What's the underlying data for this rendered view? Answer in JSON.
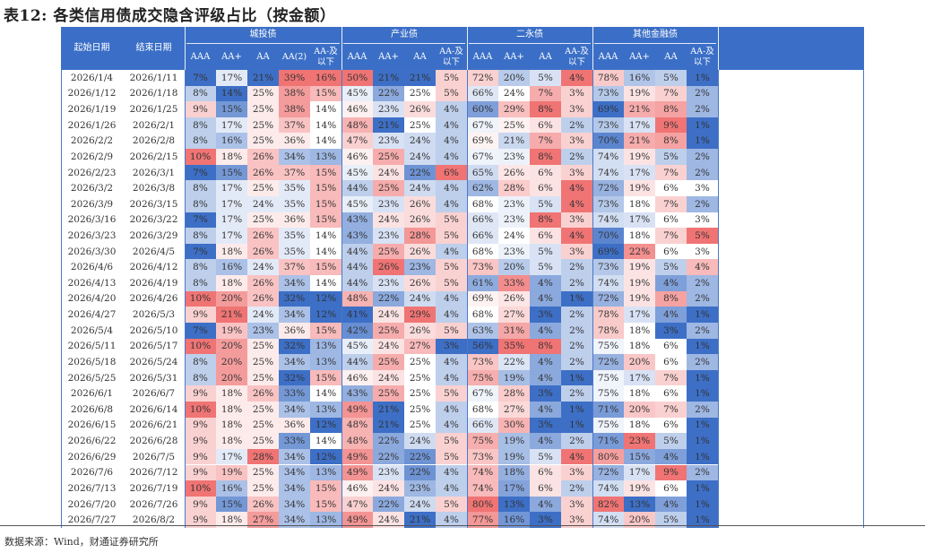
{
  "title": "表12: 各类信用债成交隐含评级占比（按金额）",
  "source": "数据来源：Wind，财通证券研究所",
  "header": {
    "start_date": "起始日期",
    "end_date": "结束日期",
    "groups": [
      {
        "name": "城投债",
        "cols": [
          "AAA",
          "AA+",
          "AA",
          "AA(2)",
          "AA-及以下"
        ]
      },
      {
        "name": "产业债",
        "cols": [
          "AAA",
          "AA+",
          "AA",
          "AA-及以下"
        ]
      },
      {
        "name": "二永债",
        "cols": [
          "AAA",
          "AA+",
          "AA",
          "AA-及以下"
        ]
      },
      {
        "name": "其他金融债",
        "cols": [
          "AAA",
          "AA+",
          "AA",
          "AA-及以下"
        ]
      }
    ]
  },
  "colors": {
    "header_bg": "#3b6fc7",
    "low_blue": "#3d6fc6",
    "white": "#ffffff",
    "high_red": "#f07474"
  },
  "rows": [
    [
      "2026/1/4",
      "2026/1/11",
      [
        "7%",
        "17%",
        "21%",
        "39%",
        "16%"
      ],
      [
        "50%",
        "21%",
        "21%",
        "5%"
      ],
      [
        "72%",
        "20%",
        "5%",
        "4%"
      ],
      [
        "78%",
        "16%",
        "5%",
        "1%"
      ]
    ],
    [
      "2026/1/12",
      "2026/1/18",
      [
        "8%",
        "14%",
        "25%",
        "38%",
        "15%"
      ],
      [
        "45%",
        "22%",
        "25%",
        "5%"
      ],
      [
        "66%",
        "24%",
        "7%",
        "3%"
      ],
      [
        "73%",
        "19%",
        "7%",
        "2%"
      ]
    ],
    [
      "2026/1/19",
      "2026/1/25",
      [
        "9%",
        "15%",
        "25%",
        "38%",
        "14%"
      ],
      [
        "46%",
        "23%",
        "26%",
        "4%"
      ],
      [
        "60%",
        "29%",
        "8%",
        "3%"
      ],
      [
        "69%",
        "21%",
        "8%",
        "2%"
      ]
    ],
    [
      "2026/1/26",
      "2026/2/1",
      [
        "8%",
        "17%",
        "25%",
        "37%",
        "14%"
      ],
      [
        "48%",
        "21%",
        "25%",
        "4%"
      ],
      [
        "67%",
        "25%",
        "6%",
        "2%"
      ],
      [
        "73%",
        "17%",
        "9%",
        "1%"
      ]
    ],
    [
      "2026/2/2",
      "2026/2/8",
      [
        "8%",
        "16%",
        "25%",
        "36%",
        "14%"
      ],
      [
        "47%",
        "23%",
        "24%",
        "4%"
      ],
      [
        "69%",
        "21%",
        "7%",
        "3%"
      ],
      [
        "70%",
        "21%",
        "8%",
        "1%"
      ]
    ],
    [
      "2026/2/9",
      "2026/2/15",
      [
        "10%",
        "18%",
        "26%",
        "34%",
        "13%"
      ],
      [
        "46%",
        "25%",
        "24%",
        "4%"
      ],
      [
        "67%",
        "23%",
        "8%",
        "2%"
      ],
      [
        "74%",
        "19%",
        "5%",
        "2%"
      ]
    ],
    [
      "2026/2/23",
      "2026/3/1",
      [
        "7%",
        "15%",
        "26%",
        "37%",
        "15%"
      ],
      [
        "45%",
        "24%",
        "22%",
        "6%"
      ],
      [
        "65%",
        "26%",
        "6%",
        "3%"
      ],
      [
        "74%",
        "17%",
        "7%",
        "2%"
      ]
    ],
    [
      "2026/3/2",
      "2026/3/8",
      [
        "8%",
        "17%",
        "25%",
        "35%",
        "15%"
      ],
      [
        "44%",
        "25%",
        "24%",
        "4%"
      ],
      [
        "62%",
        "28%",
        "6%",
        "4%"
      ],
      [
        "72%",
        "19%",
        "6%",
        "3%"
      ]
    ],
    [
      "2026/3/9",
      "2026/3/15",
      [
        "8%",
        "17%",
        "24%",
        "35%",
        "15%"
      ],
      [
        "45%",
        "23%",
        "26%",
        "4%"
      ],
      [
        "68%",
        "23%",
        "5%",
        "4%"
      ],
      [
        "73%",
        "18%",
        "7%",
        "2%"
      ]
    ],
    [
      "2026/3/16",
      "2026/3/22",
      [
        "7%",
        "17%",
        "25%",
        "36%",
        "15%"
      ],
      [
        "43%",
        "24%",
        "26%",
        "5%"
      ],
      [
        "66%",
        "23%",
        "8%",
        "3%"
      ],
      [
        "74%",
        "17%",
        "6%",
        "3%"
      ]
    ],
    [
      "2026/3/23",
      "2026/3/29",
      [
        "8%",
        "17%",
        "26%",
        "35%",
        "14%"
      ],
      [
        "43%",
        "23%",
        "28%",
        "5%"
      ],
      [
        "66%",
        "24%",
        "6%",
        "4%"
      ],
      [
        "70%",
        "18%",
        "7%",
        "5%"
      ]
    ],
    [
      "2026/3/30",
      "2026/4/5",
      [
        "7%",
        "18%",
        "26%",
        "35%",
        "14%"
      ],
      [
        "44%",
        "25%",
        "26%",
        "4%"
      ],
      [
        "68%",
        "23%",
        "5%",
        "3%"
      ],
      [
        "69%",
        "22%",
        "6%",
        "3%"
      ]
    ],
    [
      "2026/4/6",
      "2026/4/12",
      [
        "8%",
        "16%",
        "24%",
        "37%",
        "15%"
      ],
      [
        "44%",
        "26%",
        "23%",
        "5%"
      ],
      [
        "73%",
        "20%",
        "5%",
        "2%"
      ],
      [
        "73%",
        "19%",
        "5%",
        "4%"
      ]
    ],
    [
      "2026/4/13",
      "2026/4/19",
      [
        "8%",
        "18%",
        "26%",
        "34%",
        "14%"
      ],
      [
        "44%",
        "23%",
        "26%",
        "5%"
      ],
      [
        "61%",
        "33%",
        "4%",
        "2%"
      ],
      [
        "74%",
        "19%",
        "4%",
        "2%"
      ]
    ],
    [
      "2026/4/20",
      "2026/4/26",
      [
        "10%",
        "20%",
        "26%",
        "32%",
        "12%"
      ],
      [
        "48%",
        "22%",
        "24%",
        "4%"
      ],
      [
        "69%",
        "26%",
        "4%",
        "1%"
      ],
      [
        "72%",
        "19%",
        "8%",
        "2%"
      ]
    ],
    [
      "2026/4/27",
      "2026/5/3",
      [
        "9%",
        "21%",
        "24%",
        "34%",
        "12%"
      ],
      [
        "41%",
        "24%",
        "29%",
        "4%"
      ],
      [
        "68%",
        "27%",
        "3%",
        "2%"
      ],
      [
        "78%",
        "17%",
        "4%",
        "1%"
      ]
    ],
    [
      "2026/5/4",
      "2026/5/10",
      [
        "7%",
        "19%",
        "23%",
        "36%",
        "15%"
      ],
      [
        "42%",
        "25%",
        "26%",
        "5%"
      ],
      [
        "63%",
        "31%",
        "4%",
        "2%"
      ],
      [
        "78%",
        "18%",
        "3%",
        "2%"
      ]
    ],
    [
      "2026/5/11",
      "2026/5/17",
      [
        "10%",
        "20%",
        "25%",
        "32%",
        "13%"
      ],
      [
        "45%",
        "24%",
        "27%",
        "3%"
      ],
      [
        "56%",
        "35%",
        "8%",
        "2%"
      ],
      [
        "75%",
        "18%",
        "6%",
        "1%"
      ]
    ],
    [
      "2026/5/18",
      "2026/5/24",
      [
        "8%",
        "20%",
        "25%",
        "34%",
        "13%"
      ],
      [
        "44%",
        "25%",
        "25%",
        "4%"
      ],
      [
        "73%",
        "22%",
        "4%",
        "2%"
      ],
      [
        "72%",
        "20%",
        "6%",
        "2%"
      ]
    ],
    [
      "2026/5/25",
      "2026/5/31",
      [
        "8%",
        "20%",
        "25%",
        "32%",
        "15%"
      ],
      [
        "46%",
        "24%",
        "25%",
        "4%"
      ],
      [
        "75%",
        "19%",
        "4%",
        "1%"
      ],
      [
        "75%",
        "17%",
        "7%",
        "1%"
      ]
    ],
    [
      "2026/6/1",
      "2026/6/7",
      [
        "9%",
        "18%",
        "26%",
        "33%",
        "14%"
      ],
      [
        "43%",
        "25%",
        "25%",
        "5%"
      ],
      [
        "67%",
        "28%",
        "3%",
        "2%"
      ],
      [
        "75%",
        "18%",
        "6%",
        "1%"
      ]
    ],
    [
      "2026/6/8",
      "2026/6/14",
      [
        "10%",
        "18%",
        "25%",
        "34%",
        "13%"
      ],
      [
        "49%",
        "21%",
        "25%",
        "4%"
      ],
      [
        "68%",
        "27%",
        "4%",
        "1%"
      ],
      [
        "71%",
        "20%",
        "7%",
        "2%"
      ]
    ],
    [
      "2026/6/15",
      "2026/6/21",
      [
        "9%",
        "18%",
        "25%",
        "36%",
        "12%"
      ],
      [
        "48%",
        "21%",
        "25%",
        "4%"
      ],
      [
        "66%",
        "30%",
        "3%",
        "1%"
      ],
      [
        "75%",
        "18%",
        "6%",
        "1%"
      ]
    ],
    [
      "2026/6/22",
      "2026/6/28",
      [
        "9%",
        "18%",
        "25%",
        "33%",
        "14%"
      ],
      [
        "48%",
        "22%",
        "24%",
        "5%"
      ],
      [
        "75%",
        "19%",
        "4%",
        "2%"
      ],
      [
        "71%",
        "23%",
        "5%",
        "1%"
      ]
    ],
    [
      "2026/6/29",
      "2026/7/5",
      [
        "9%",
        "17%",
        "28%",
        "34%",
        "12%"
      ],
      [
        "49%",
        "22%",
        "22%",
        "5%"
      ],
      [
        "73%",
        "19%",
        "5%",
        "4%"
      ],
      [
        "80%",
        "15%",
        "4%",
        "1%"
      ]
    ],
    [
      "2026/7/6",
      "2026/7/12",
      [
        "9%",
        "19%",
        "25%",
        "34%",
        "13%"
      ],
      [
        "49%",
        "23%",
        "22%",
        "4%"
      ],
      [
        "74%",
        "18%",
        "6%",
        "3%"
      ],
      [
        "72%",
        "17%",
        "9%",
        "2%"
      ]
    ],
    [
      "2026/7/13",
      "2026/7/19",
      [
        "10%",
        "16%",
        "25%",
        "34%",
        "15%"
      ],
      [
        "46%",
        "24%",
        "23%",
        "4%"
      ],
      [
        "74%",
        "17%",
        "6%",
        "2%"
      ],
      [
        "74%",
        "19%",
        "6%",
        "1%"
      ]
    ],
    [
      "2026/7/20",
      "2026/7/26",
      [
        "9%",
        "15%",
        "26%",
        "34%",
        "15%"
      ],
      [
        "47%",
        "22%",
        "24%",
        "5%"
      ],
      [
        "80%",
        "13%",
        "4%",
        "3%"
      ],
      [
        "82%",
        "13%",
        "4%",
        "1%"
      ]
    ],
    [
      "2026/7/27",
      "2026/8/2",
      [
        "9%",
        "18%",
        "27%",
        "34%",
        "13%"
      ],
      [
        "49%",
        "24%",
        "21%",
        "4%"
      ],
      [
        "77%",
        "16%",
        "3%",
        "3%"
      ],
      [
        "74%",
        "20%",
        "5%",
        "1%"
      ]
    ]
  ]
}
